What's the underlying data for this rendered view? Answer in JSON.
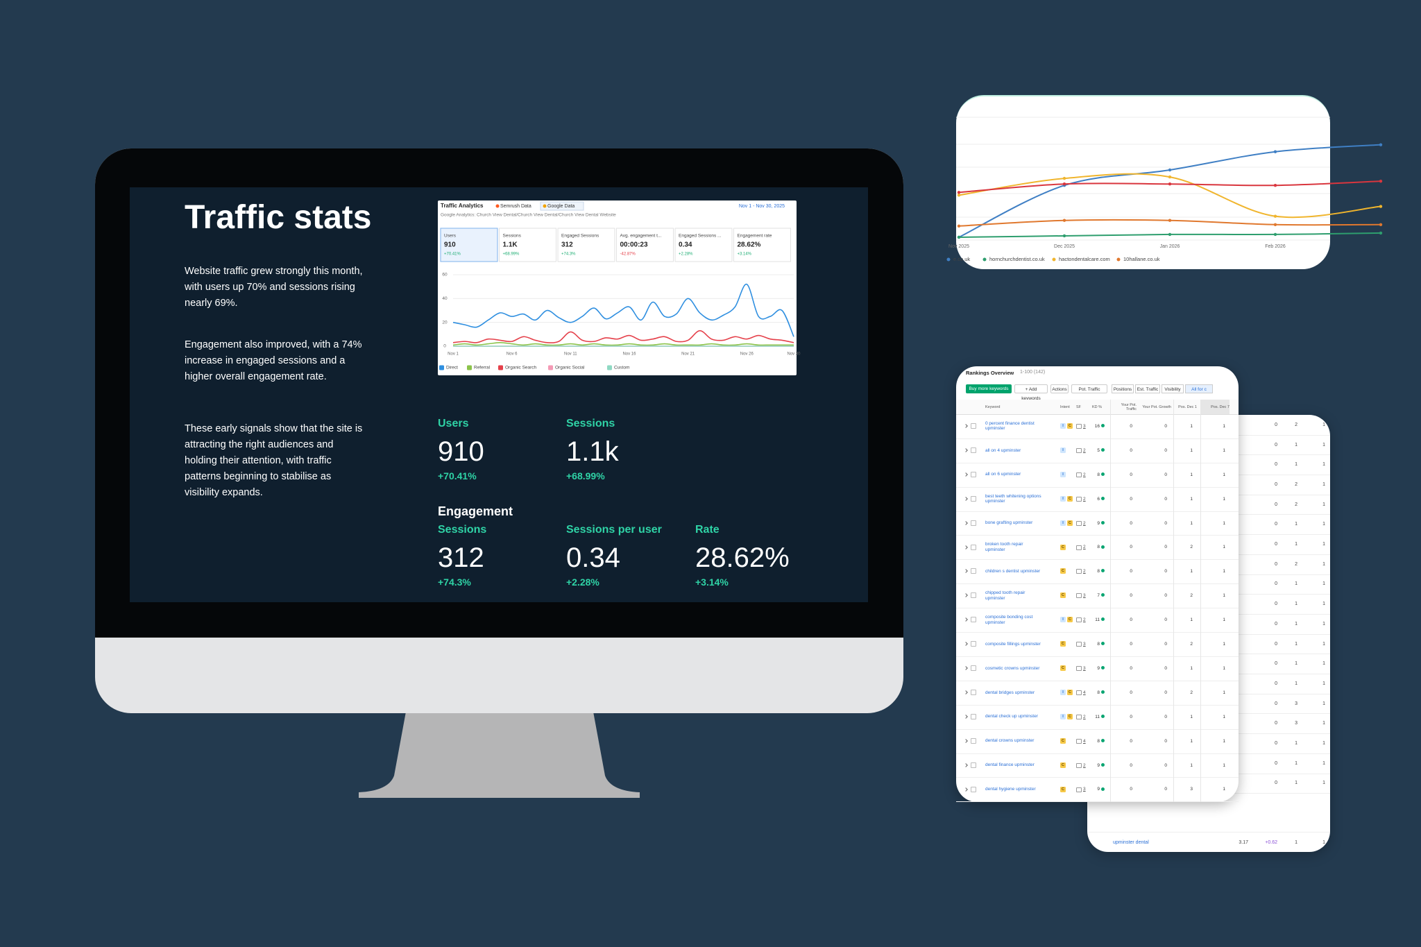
{
  "monitor": {
    "title": "Traffic stats",
    "paragraphs": [
      "Website traffic grew strongly this month, with users up 70% and sessions rising nearly 69%.",
      "Engagement also improved, with a 74% increase in engaged sessions and a higher overall engagement rate.",
      "These early signals show that the site is attracting the right audiences and holding their attention, with traffic patterns beginning to stabilise as visibility expands."
    ],
    "metrics": [
      {
        "label": "Users",
        "value": "910",
        "change": "+70.41%"
      },
      {
        "label": "Sessions",
        "value": "1.1k",
        "change": "+68.99%"
      }
    ],
    "engagement": {
      "heading": "Engagement",
      "metrics": [
        {
          "label": "Sessions",
          "value": "312",
          "change": "+74.3%"
        },
        {
          "label": "Sessions per user",
          "value": "0.34",
          "change": "+2.28%"
        },
        {
          "label": "Rate",
          "value": "28.62%",
          "change": "+3.14%"
        }
      ]
    }
  },
  "analytics": {
    "title": "Traffic Analytics",
    "tabs": [
      "Semrush Data",
      "Google Data"
    ],
    "date_range": "Nov 1 - Nov 30, 2025",
    "source": "Google Analytics: Church View Dental/Church View Dental/Church View Dental Website",
    "cards": [
      {
        "label": "Users",
        "value": "910",
        "change": "+70.41%"
      },
      {
        "label": "Sessions",
        "value": "1.1K",
        "change": "+68.99%"
      },
      {
        "label": "Engaged Sessions",
        "value": "312",
        "change": "+74.3%"
      },
      {
        "label": "Avg. engagement t...",
        "value": "00:00:23",
        "change": "-42.87%"
      },
      {
        "label": "Engaged Sessions ...",
        "value": "0.34",
        "change": "+2.28%"
      },
      {
        "label": "Engagement rate",
        "value": "28.62%",
        "change": "+3.14%"
      }
    ]
  },
  "chart_data": [
    {
      "type": "line",
      "categories": [
        "Nov 1",
        null,
        null,
        null,
        null,
        "Nov 6",
        null,
        null,
        null,
        null,
        "Nov 11",
        null,
        null,
        null,
        null,
        "Nov 16",
        null,
        null,
        null,
        null,
        "Nov 21",
        null,
        null,
        null,
        null,
        "Nov 26",
        null,
        null,
        null,
        "Nov 30"
      ],
      "ylim": [
        0,
        60
      ],
      "yticks": [
        0,
        20,
        40,
        60
      ],
      "grid": true,
      "legend": "bottom",
      "series": [
        {
          "name": "Direct",
          "color": "#2f8fe0",
          "values": [
            20,
            18,
            16,
            22,
            28,
            25,
            27,
            22,
            30,
            24,
            20,
            25,
            32,
            23,
            28,
            33,
            22,
            37,
            25,
            27,
            40,
            28,
            22,
            26,
            33,
            52,
            25,
            25,
            30,
            8
          ]
        },
        {
          "name": "Referral",
          "color": "#8bc34a",
          "values": [
            1,
            2,
            1,
            2,
            3,
            2,
            1,
            2,
            1,
            1,
            2,
            1,
            2,
            1,
            1,
            2,
            1,
            1,
            2,
            1,
            1,
            1,
            2,
            1,
            1,
            2,
            1,
            1,
            1,
            1
          ]
        },
        {
          "name": "Organic Search",
          "color": "#e5404a",
          "values": [
            3,
            4,
            3,
            6,
            5,
            4,
            8,
            5,
            3,
            4,
            12,
            5,
            4,
            7,
            6,
            9,
            5,
            6,
            8,
            4,
            5,
            13,
            6,
            5,
            8,
            6,
            9,
            6,
            5,
            3
          ]
        },
        {
          "name": "Organic Social",
          "color": "#f49ab5",
          "values": [
            0,
            0,
            0,
            0,
            0,
            0,
            0,
            0,
            0,
            0,
            0,
            0,
            0,
            0,
            0,
            0,
            0,
            0,
            0,
            0,
            0,
            0,
            0,
            0,
            0,
            0,
            0,
            0,
            0,
            0
          ]
        },
        {
          "name": "Custom",
          "color": "#8fd9c3",
          "values": [
            0,
            0,
            0,
            0,
            0,
            0,
            0,
            0,
            0,
            0,
            0,
            0,
            0,
            0,
            0,
            0,
            0,
            0,
            0,
            0,
            0,
            0,
            0,
            0,
            0,
            0,
            0,
            0,
            0,
            0
          ]
        }
      ]
    },
    {
      "type": "line",
      "categories": [
        "Nov 2025",
        "Dec 2025",
        "Jan 2026",
        "Feb 2026",
        null
      ],
      "ylim": [
        0,
        100
      ],
      "legend": "bottom",
      "series": [
        {
          "name": "e.co.uk",
          "color": "#3f7fc4",
          "values": [
            2,
            39,
            50,
            63,
            68
          ]
        },
        {
          "name": "hornchurchdentist.co.uk",
          "color": "#2e9e6e",
          "values": [
            2,
            3,
            4,
            4,
            5
          ]
        },
        {
          "name": "hactondentalcare.com",
          "color": "#f0b52d",
          "values": [
            32,
            44,
            45,
            17,
            24
          ]
        },
        {
          "name": "10hallane.co.uk",
          "color": "#e0782e",
          "values": [
            10,
            14,
            14,
            11,
            11
          ]
        },
        {
          "color": "#d9363e",
          "values": [
            34,
            40,
            40,
            39,
            42
          ]
        }
      ]
    }
  ],
  "rankings": {
    "title": "Rankings Overview",
    "count": "1-100 (142)",
    "buttons": [
      "Buy more keywords",
      "+ Add keywords",
      "Actions",
      "Pot. Traffic"
    ],
    "tabs": [
      "Positions",
      "Est. Traffic",
      "Visibility",
      "All for c"
    ],
    "columns": [
      "Keyword",
      "Intent",
      "SF",
      "KD %",
      "Your Pot. Traffic",
      "Your Pot. Growth",
      "Pos. Dec 1",
      "Pos. Dec 7"
    ],
    "rows": [
      {
        "keyword": "0 percent finance dentist upminster",
        "intent": [
          "I",
          "C"
        ],
        "sf": "3",
        "kd": "16",
        "traffic": "0",
        "growth": "0",
        "dec1": "1",
        "dec7": "1"
      },
      {
        "keyword": "all on 4 upminster",
        "intent": [
          "I"
        ],
        "sf": "2",
        "kd": "5",
        "traffic": "0",
        "growth": "0",
        "dec1": "1",
        "dec7": "1"
      },
      {
        "keyword": "all on 6 upminster",
        "intent": [
          "I"
        ],
        "sf": "2",
        "kd": "8",
        "traffic": "0",
        "growth": "0",
        "dec1": "1",
        "dec7": "1"
      },
      {
        "keyword": "best teeth whitening options upminster",
        "intent": [
          "I",
          "C"
        ],
        "sf": "2",
        "kd": "6",
        "traffic": "0",
        "growth": "0",
        "dec1": "1",
        "dec7": "1"
      },
      {
        "keyword": "bone grafting upminster",
        "intent": [
          "I",
          "C"
        ],
        "sf": "2",
        "kd": "9",
        "traffic": "0",
        "growth": "0",
        "dec1": "1",
        "dec7": "1"
      },
      {
        "keyword": "broken tooth repair upminster",
        "intent": [
          "C"
        ],
        "sf": "2",
        "kd": "8",
        "traffic": "0",
        "growth": "0",
        "dec1": "2",
        "dec7": "1"
      },
      {
        "keyword": "children s dentist upminster",
        "intent": [
          "C"
        ],
        "sf": "2",
        "kd": "8",
        "traffic": "0",
        "growth": "0",
        "dec1": "1",
        "dec7": "1"
      },
      {
        "keyword": "chipped tooth repair upminster",
        "intent": [
          "C"
        ],
        "sf": "3",
        "kd": "7",
        "traffic": "0",
        "growth": "0",
        "dec1": "2",
        "dec7": "1"
      },
      {
        "keyword": "composite bonding cost upminster",
        "intent": [
          "I",
          "C"
        ],
        "sf": "2",
        "kd": "11",
        "traffic": "0",
        "growth": "0",
        "dec1": "1",
        "dec7": "1"
      },
      {
        "keyword": "composite fillings upminster",
        "intent": [
          "C"
        ],
        "sf": "3",
        "kd": "8",
        "traffic": "0",
        "growth": "0",
        "dec1": "2",
        "dec7": "1"
      },
      {
        "keyword": "cosmetic crowns upminster",
        "intent": [
          "C"
        ],
        "sf": "3",
        "kd": "9",
        "traffic": "0",
        "growth": "0",
        "dec1": "1",
        "dec7": "1"
      },
      {
        "keyword": "dental bridges upminster",
        "intent": [
          "I",
          "C"
        ],
        "sf": "4",
        "kd": "8",
        "traffic": "0",
        "growth": "0",
        "dec1": "2",
        "dec7": "1"
      },
      {
        "keyword": "dental check up upminster",
        "intent": [
          "I",
          "C"
        ],
        "sf": "2",
        "kd": "11",
        "traffic": "0",
        "growth": "0",
        "dec1": "1",
        "dec7": "1"
      },
      {
        "keyword": "dental crowns upminster",
        "intent": [
          "C"
        ],
        "sf": "4",
        "kd": "8",
        "traffic": "0",
        "growth": "0",
        "dec1": "1",
        "dec7": "1"
      },
      {
        "keyword": "dental finance upminster",
        "intent": [
          "C"
        ],
        "sf": "2",
        "kd": "9",
        "traffic": "0",
        "growth": "0",
        "dec1": "1",
        "dec7": "1"
      },
      {
        "keyword": "dental hygiene upminster",
        "intent": [
          "C"
        ],
        "sf": "3",
        "kd": "9",
        "traffic": "0",
        "growth": "0",
        "dec1": "3",
        "dec7": "1"
      }
    ],
    "back_rows": [
      [
        "0",
        "2",
        "1"
      ],
      [
        "0",
        "1",
        "1"
      ],
      [
        "0",
        "1",
        "1"
      ],
      [
        "0",
        "2",
        "1"
      ],
      [
        "0",
        "2",
        "1"
      ],
      [
        "0",
        "1",
        "1"
      ],
      [
        "0",
        "1",
        "1"
      ],
      [
        "0",
        "2",
        "1"
      ],
      [
        "0",
        "1",
        "1"
      ],
      [
        "0",
        "1",
        "1"
      ],
      [
        "0",
        "1",
        "1"
      ],
      [
        "0",
        "1",
        "1"
      ],
      [
        "0",
        "1",
        "1"
      ],
      [
        "0",
        "1",
        "1"
      ],
      [
        "0",
        "3",
        "1"
      ],
      [
        "0",
        "3",
        "1"
      ],
      [
        "0",
        "1",
        "1"
      ],
      [
        "0",
        "1",
        "1"
      ],
      [
        "0",
        "1",
        "1"
      ]
    ],
    "back_keyword_row": {
      "keyword": "upminster dental",
      "values": [
        "3.17",
        "+0.62",
        "1",
        "1"
      ]
    }
  }
}
